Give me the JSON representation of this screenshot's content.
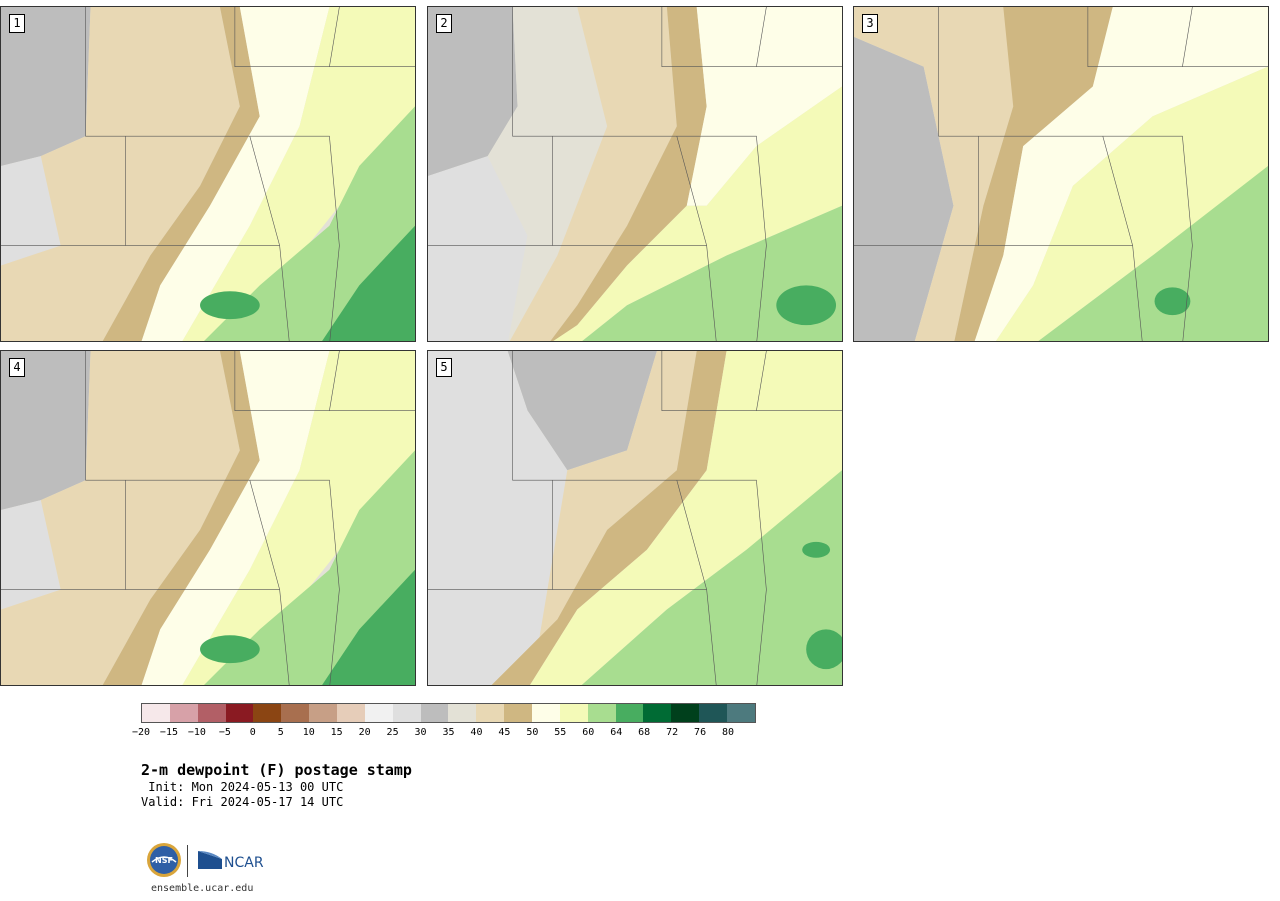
{
  "panels": [
    {
      "label": "1",
      "style": "dry-west"
    },
    {
      "label": "2",
      "style": "moist-south"
    },
    {
      "label": "3",
      "style": "mid"
    },
    {
      "label": "4",
      "style": "dry-west"
    },
    {
      "label": "5",
      "style": "moist-east"
    }
  ],
  "colorbar": {
    "colors": [
      "#f6e8ea",
      "#d7a1a8",
      "#b25f66",
      "#8a1a22",
      "#8b4513",
      "#a86f4f",
      "#c79f86",
      "#e6cdb9",
      "#f1f1f1",
      "#dfdfdf",
      "#bdbdbd",
      "#e3e1d6",
      "#e8d8b4",
      "#cfb782",
      "#fefee8",
      "#f4fab8",
      "#a8dd90",
      "#48ad60",
      "#006b34",
      "#00401c",
      "#1f5657",
      "#4d7a7e"
    ],
    "ticks": [
      "−20",
      "−15",
      "−10",
      "−5",
      "0",
      "5",
      "10",
      "15",
      "20",
      "25",
      "30",
      "35",
      "40",
      "45",
      "50",
      "55",
      "60",
      "64",
      "68",
      "72",
      "76",
      "80"
    ]
  },
  "title": "2-m dewpoint (F) postage stamp",
  "init": " Init: Mon 2024-05-13 00 UTC",
  "valid": "Valid: Fri 2024-05-17 14 UTC",
  "logos": {
    "nsf": "NSF",
    "ncar": "NCAR"
  },
  "site": "ensemble.ucar.edu"
}
